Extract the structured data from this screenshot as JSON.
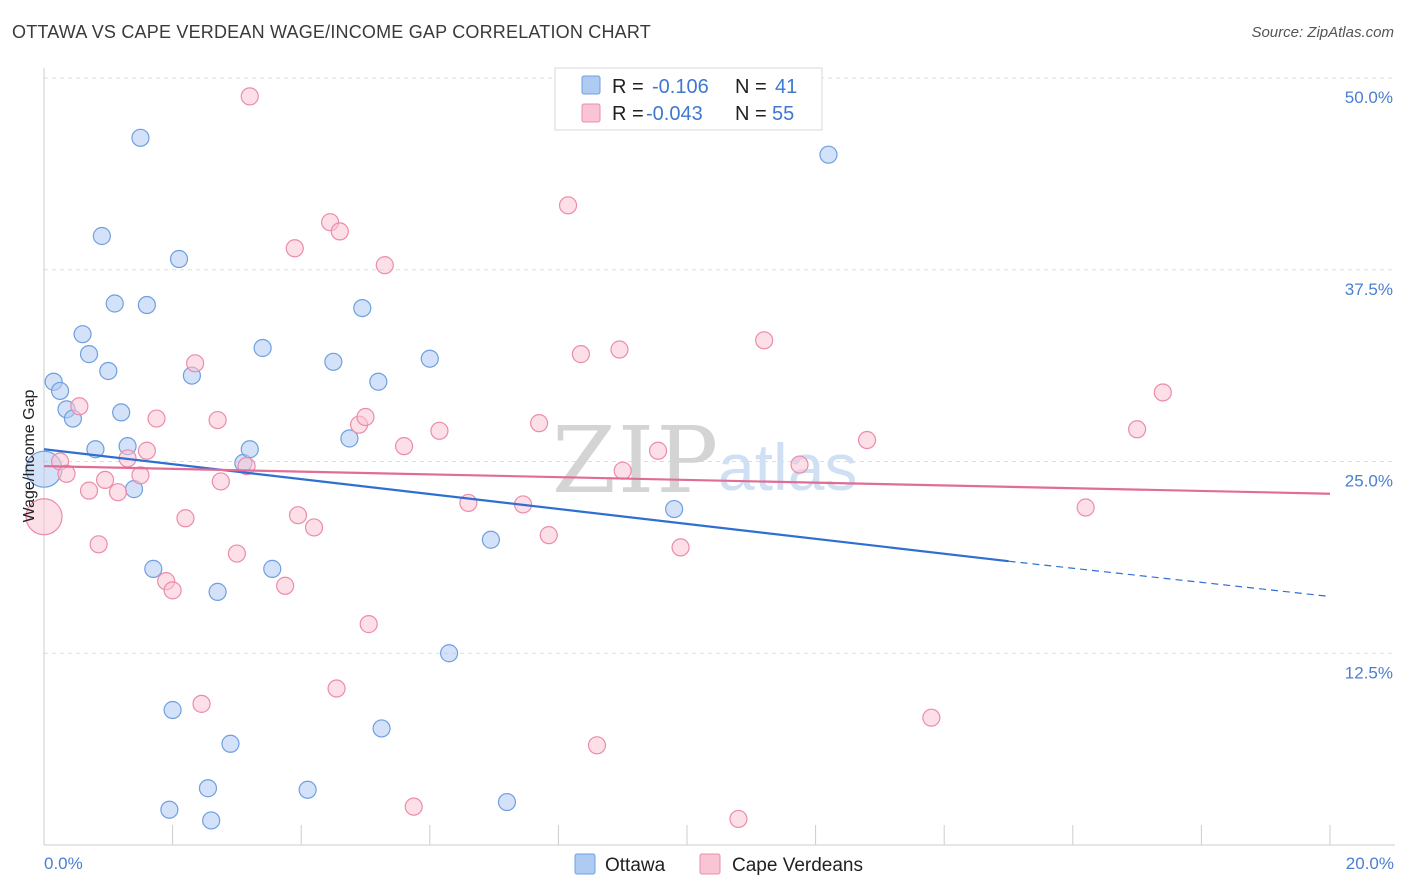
{
  "title": "OTTAWA VS CAPE VERDEAN WAGE/INCOME GAP CORRELATION CHART",
  "source": "Source: ZipAtlas.com",
  "watermark": {
    "zip": "ZIP",
    "atlas": "atlas"
  },
  "legend_stats": [
    {
      "r_label": "R =",
      "r_value": "-0.106",
      "n_label": "N =",
      "n_value": "41",
      "color": "#aecbf2",
      "stroke": "#6f9fe0"
    },
    {
      "r_label": "R =",
      "r_value": "-0.043",
      "n_label": "N =",
      "n_value": "55",
      "color": "#f9c4d4",
      "stroke": "#ec8cab"
    }
  ],
  "bottom_legend": [
    {
      "label": "Ottawa",
      "color": "#aecbf2",
      "stroke": "#6f9fe0"
    },
    {
      "label": "Cape Verdeans",
      "color": "#f9c4d4",
      "stroke": "#ec8cab"
    }
  ],
  "chart_data": {
    "type": "scatter",
    "ylabel": "Wage/Income Gap",
    "xlim": [
      0,
      20
    ],
    "ylim": [
      0,
      50
    ],
    "x_tick_labels": [
      {
        "value": 0,
        "label": "0.0%"
      },
      {
        "value": 20,
        "label": "20.0%"
      }
    ],
    "y_tick_labels": [
      {
        "value": 12.5,
        "label": "12.5%"
      },
      {
        "value": 25,
        "label": "25.0%"
      },
      {
        "value": 37.5,
        "label": "37.5%"
      },
      {
        "value": 50,
        "label": "50.0%"
      }
    ],
    "grid": true,
    "series": [
      {
        "name": "Ottawa",
        "color": "#aecbf2",
        "stroke": "#6f9fe0",
        "trend_color": "#2f6fd1",
        "trend": {
          "x0": 0,
          "y0": 25.8,
          "x1": 15.0,
          "y1": 18.5,
          "dash_x1": 20,
          "dash_y1": 16.2
        },
        "points": [
          [
            0.0,
            24.5
          ],
          [
            0.15,
            30.2
          ],
          [
            0.25,
            29.6
          ],
          [
            0.35,
            28.4
          ],
          [
            0.45,
            27.8
          ],
          [
            0.6,
            33.3
          ],
          [
            0.7,
            32.0
          ],
          [
            0.8,
            25.8
          ],
          [
            0.9,
            39.7
          ],
          [
            1.0,
            30.9
          ],
          [
            1.1,
            35.3
          ],
          [
            1.2,
            28.2
          ],
          [
            1.3,
            26.0
          ],
          [
            1.4,
            23.2
          ],
          [
            1.5,
            46.1
          ],
          [
            1.6,
            35.2
          ],
          [
            1.7,
            18.0
          ],
          [
            1.95,
            2.3
          ],
          [
            2.0,
            8.8
          ],
          [
            2.1,
            38.2
          ],
          [
            2.3,
            30.6
          ],
          [
            2.55,
            3.7
          ],
          [
            2.6,
            1.6
          ],
          [
            2.7,
            16.5
          ],
          [
            2.9,
            6.6
          ],
          [
            3.1,
            24.9
          ],
          [
            3.2,
            25.8
          ],
          [
            3.4,
            32.4
          ],
          [
            3.55,
            18.0
          ],
          [
            4.1,
            3.6
          ],
          [
            4.5,
            31.5
          ],
          [
            4.75,
            26.5
          ],
          [
            4.95,
            35.0
          ],
          [
            5.2,
            30.2
          ],
          [
            5.25,
            7.6
          ],
          [
            6.0,
            31.7
          ],
          [
            6.3,
            12.5
          ],
          [
            6.95,
            19.9
          ],
          [
            7.2,
            2.8
          ],
          [
            9.8,
            21.9
          ],
          [
            12.2,
            45.0
          ]
        ]
      },
      {
        "name": "Cape Verdeans",
        "color": "#f9c4d4",
        "stroke": "#ec8cab",
        "trend_color": "#e06d96",
        "trend": {
          "x0": 0,
          "y0": 24.7,
          "x1": 20,
          "y1": 22.9
        },
        "points": [
          [
            0.0,
            21.4
          ],
          [
            0.25,
            25.0
          ],
          [
            0.35,
            24.2
          ],
          [
            0.55,
            28.6
          ],
          [
            0.7,
            23.1
          ],
          [
            0.85,
            19.6
          ],
          [
            0.95,
            23.8
          ],
          [
            1.15,
            23.0
          ],
          [
            1.3,
            25.2
          ],
          [
            1.5,
            24.1
          ],
          [
            1.6,
            25.7
          ],
          [
            1.75,
            27.8
          ],
          [
            1.9,
            17.2
          ],
          [
            2.0,
            16.6
          ],
          [
            2.2,
            21.3
          ],
          [
            2.35,
            31.4
          ],
          [
            2.45,
            9.2
          ],
          [
            2.7,
            27.7
          ],
          [
            2.75,
            23.7
          ],
          [
            3.0,
            19.0
          ],
          [
            3.15,
            24.7
          ],
          [
            3.2,
            48.8
          ],
          [
            3.75,
            16.9
          ],
          [
            3.9,
            38.9
          ],
          [
            3.95,
            21.5
          ],
          [
            4.2,
            20.7
          ],
          [
            4.45,
            40.6
          ],
          [
            4.6,
            40.0
          ],
          [
            4.55,
            10.2
          ],
          [
            4.9,
            27.4
          ],
          [
            5.0,
            27.9
          ],
          [
            5.05,
            14.4
          ],
          [
            5.3,
            37.8
          ],
          [
            5.6,
            26.0
          ],
          [
            5.75,
            2.5
          ],
          [
            6.15,
            27.0
          ],
          [
            6.6,
            22.3
          ],
          [
            7.45,
            22.2
          ],
          [
            7.7,
            27.5
          ],
          [
            7.85,
            20.2
          ],
          [
            8.15,
            41.7
          ],
          [
            8.35,
            32.0
          ],
          [
            8.6,
            6.5
          ],
          [
            8.95,
            32.3
          ],
          [
            9.0,
            24.4
          ],
          [
            9.55,
            25.7
          ],
          [
            9.9,
            19.4
          ],
          [
            10.8,
            1.7
          ],
          [
            11.2,
            32.9
          ],
          [
            11.75,
            24.8
          ],
          [
            12.8,
            26.4
          ],
          [
            13.8,
            8.3
          ],
          [
            16.2,
            22.0
          ],
          [
            17.0,
            27.1
          ],
          [
            17.4,
            29.5
          ]
        ]
      }
    ]
  }
}
